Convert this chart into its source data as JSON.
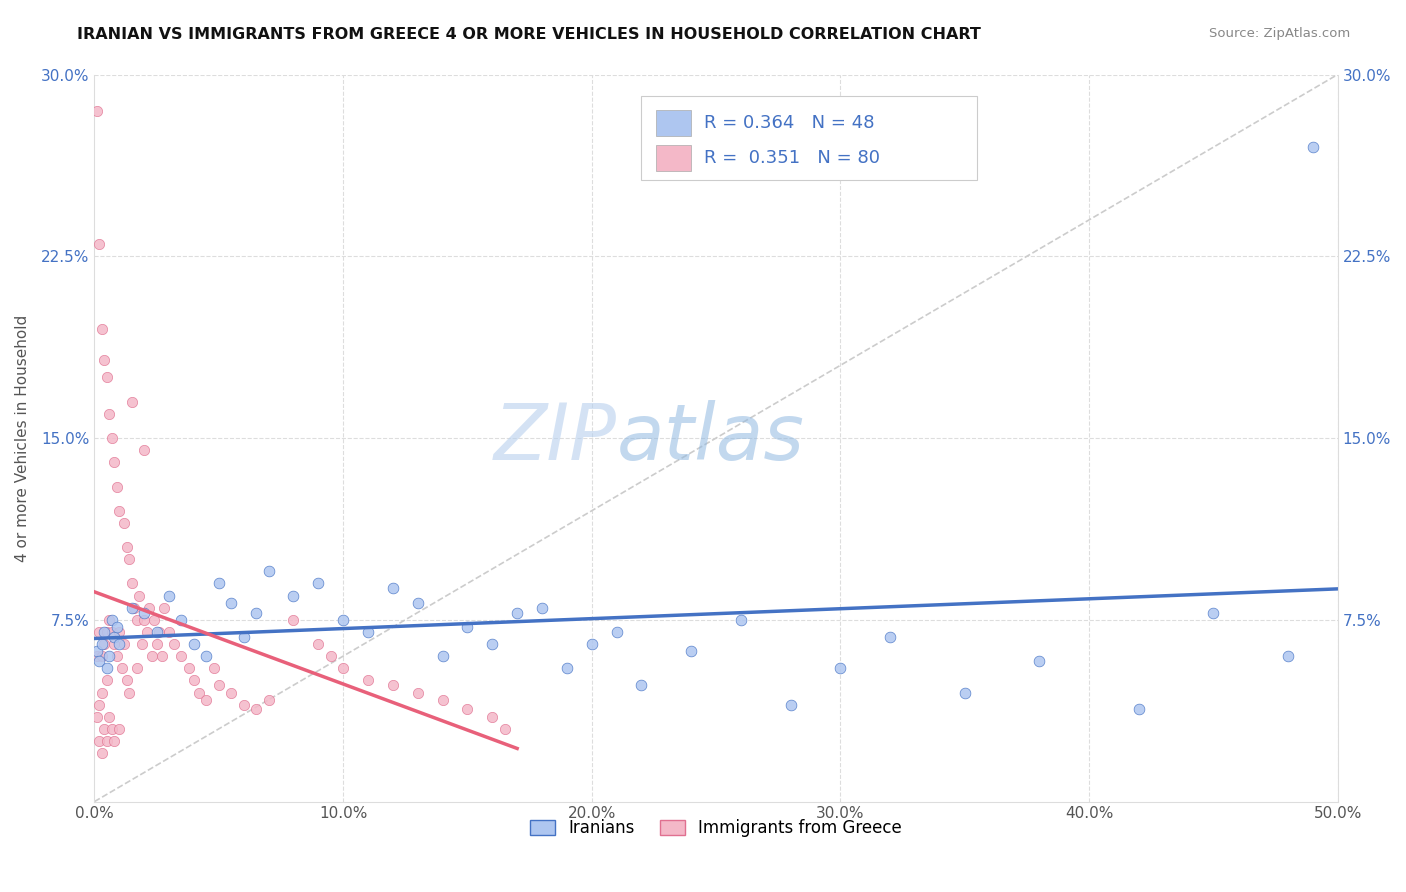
{
  "title": "IRANIAN VS IMMIGRANTS FROM GREECE 4 OR MORE VEHICLES IN HOUSEHOLD CORRELATION CHART",
  "source": "Source: ZipAtlas.com",
  "ylabel": "4 or more Vehicles in Household",
  "xlim": [
    0.0,
    0.5
  ],
  "ylim": [
    0.0,
    0.3
  ],
  "xticks": [
    0.0,
    0.1,
    0.2,
    0.3,
    0.4,
    0.5
  ],
  "yticks": [
    0.0,
    0.075,
    0.15,
    0.225,
    0.3
  ],
  "xticklabels": [
    "0.0%",
    "10.0%",
    "20.0%",
    "30.0%",
    "40.0%",
    "50.0%"
  ],
  "yticklabels": [
    "",
    "7.5%",
    "15.0%",
    "22.5%",
    "30.0%"
  ],
  "iranians_fill": "#aec6f0",
  "iranians_edge": "#4472c4",
  "greece_fill": "#f4b8c8",
  "greece_edge": "#e07090",
  "trend_iran_color": "#4472c4",
  "trend_greece_color": "#e8607a",
  "diagonal_color": "#cccccc",
  "background_color": "#ffffff",
  "grid_color": "#dddddd",
  "legend_label_iranians": "Iranians",
  "legend_label_greece": "Immigrants from Greece",
  "r_iranians": 0.364,
  "n_iranians": 48,
  "r_greece": 0.351,
  "n_greece": 80,
  "iran_x": [
    0.001,
    0.002,
    0.003,
    0.004,
    0.005,
    0.006,
    0.007,
    0.008,
    0.009,
    0.01,
    0.015,
    0.02,
    0.025,
    0.03,
    0.035,
    0.04,
    0.045,
    0.05,
    0.055,
    0.06,
    0.065,
    0.07,
    0.08,
    0.09,
    0.1,
    0.11,
    0.12,
    0.13,
    0.14,
    0.15,
    0.16,
    0.17,
    0.18,
    0.19,
    0.2,
    0.21,
    0.22,
    0.24,
    0.26,
    0.28,
    0.3,
    0.32,
    0.35,
    0.38,
    0.42,
    0.45,
    0.48,
    0.49
  ],
  "iran_y": [
    0.062,
    0.058,
    0.065,
    0.07,
    0.055,
    0.06,
    0.075,
    0.068,
    0.072,
    0.065,
    0.08,
    0.078,
    0.07,
    0.085,
    0.075,
    0.065,
    0.06,
    0.09,
    0.082,
    0.068,
    0.078,
    0.095,
    0.085,
    0.09,
    0.075,
    0.07,
    0.088,
    0.082,
    0.06,
    0.072,
    0.065,
    0.078,
    0.08,
    0.055,
    0.065,
    0.07,
    0.048,
    0.062,
    0.075,
    0.04,
    0.055,
    0.068,
    0.045,
    0.058,
    0.038,
    0.078,
    0.06,
    0.27
  ],
  "greece_x": [
    0.001,
    0.001,
    0.001,
    0.002,
    0.002,
    0.002,
    0.002,
    0.003,
    0.003,
    0.003,
    0.003,
    0.004,
    0.004,
    0.004,
    0.005,
    0.005,
    0.005,
    0.005,
    0.006,
    0.006,
    0.006,
    0.007,
    0.007,
    0.007,
    0.008,
    0.008,
    0.008,
    0.009,
    0.009,
    0.01,
    0.01,
    0.01,
    0.011,
    0.012,
    0.012,
    0.013,
    0.013,
    0.014,
    0.014,
    0.015,
    0.015,
    0.016,
    0.017,
    0.017,
    0.018,
    0.019,
    0.02,
    0.02,
    0.021,
    0.022,
    0.023,
    0.024,
    0.025,
    0.026,
    0.027,
    0.028,
    0.03,
    0.032,
    0.035,
    0.038,
    0.04,
    0.042,
    0.045,
    0.048,
    0.05,
    0.055,
    0.06,
    0.065,
    0.07,
    0.08,
    0.09,
    0.095,
    0.1,
    0.11,
    0.12,
    0.13,
    0.14,
    0.15,
    0.16,
    0.165
  ],
  "greece_y": [
    0.285,
    0.06,
    0.035,
    0.23,
    0.07,
    0.04,
    0.025,
    0.195,
    0.06,
    0.045,
    0.02,
    0.182,
    0.065,
    0.03,
    0.175,
    0.07,
    0.05,
    0.025,
    0.16,
    0.075,
    0.035,
    0.15,
    0.07,
    0.03,
    0.14,
    0.065,
    0.025,
    0.13,
    0.06,
    0.12,
    0.07,
    0.03,
    0.055,
    0.115,
    0.065,
    0.105,
    0.05,
    0.1,
    0.045,
    0.165,
    0.09,
    0.08,
    0.075,
    0.055,
    0.085,
    0.065,
    0.145,
    0.075,
    0.07,
    0.08,
    0.06,
    0.075,
    0.065,
    0.07,
    0.06,
    0.08,
    0.07,
    0.065,
    0.06,
    0.055,
    0.05,
    0.045,
    0.042,
    0.055,
    0.048,
    0.045,
    0.04,
    0.038,
    0.042,
    0.075,
    0.065,
    0.06,
    0.055,
    0.05,
    0.048,
    0.045,
    0.042,
    0.038,
    0.035,
    0.03
  ]
}
